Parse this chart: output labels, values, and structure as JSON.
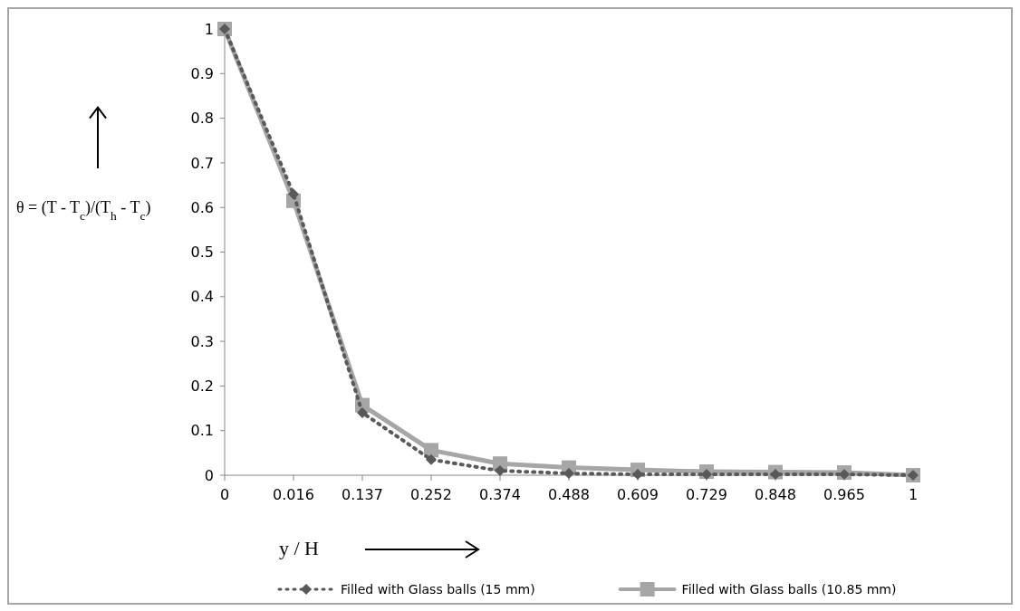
{
  "chart_data": {
    "type": "line",
    "xlabel": "y / H",
    "ylabel": "θ = (T - T$_{c}$)/(T$_{h}$ - T$_{c}$)",
    "categories": [
      "0",
      "0.016",
      "0.137",
      "0.252",
      "0.374",
      "0.488",
      "0.609",
      "0.729",
      "0.848",
      "0.965",
      "1"
    ],
    "ylim": [
      0,
      1
    ],
    "yticks": [
      0,
      0.1,
      0.2,
      0.3,
      0.4,
      0.5,
      0.6,
      0.7,
      0.8,
      0.9,
      1
    ],
    "series": [
      {
        "name": "Filled with Glass balls (15 mm)",
        "color": "#595959",
        "marker": "diamond",
        "line_style": "dotted",
        "values": [
          1,
          0.63,
          0.14,
          0.035,
          0.01,
          0.004,
          0.002,
          0.002,
          0.002,
          0.002,
          0
        ]
      },
      {
        "name": "Filled with Glass balls (10.85 mm)",
        "color": "#a6a6a6",
        "marker": "square",
        "line_style": "solid",
        "values": [
          1,
          0.615,
          0.157,
          0.056,
          0.026,
          0.017,
          0.012,
          0.008,
          0.007,
          0.006,
          0
        ]
      }
    ],
    "grid": false,
    "legend": "bottom"
  }
}
